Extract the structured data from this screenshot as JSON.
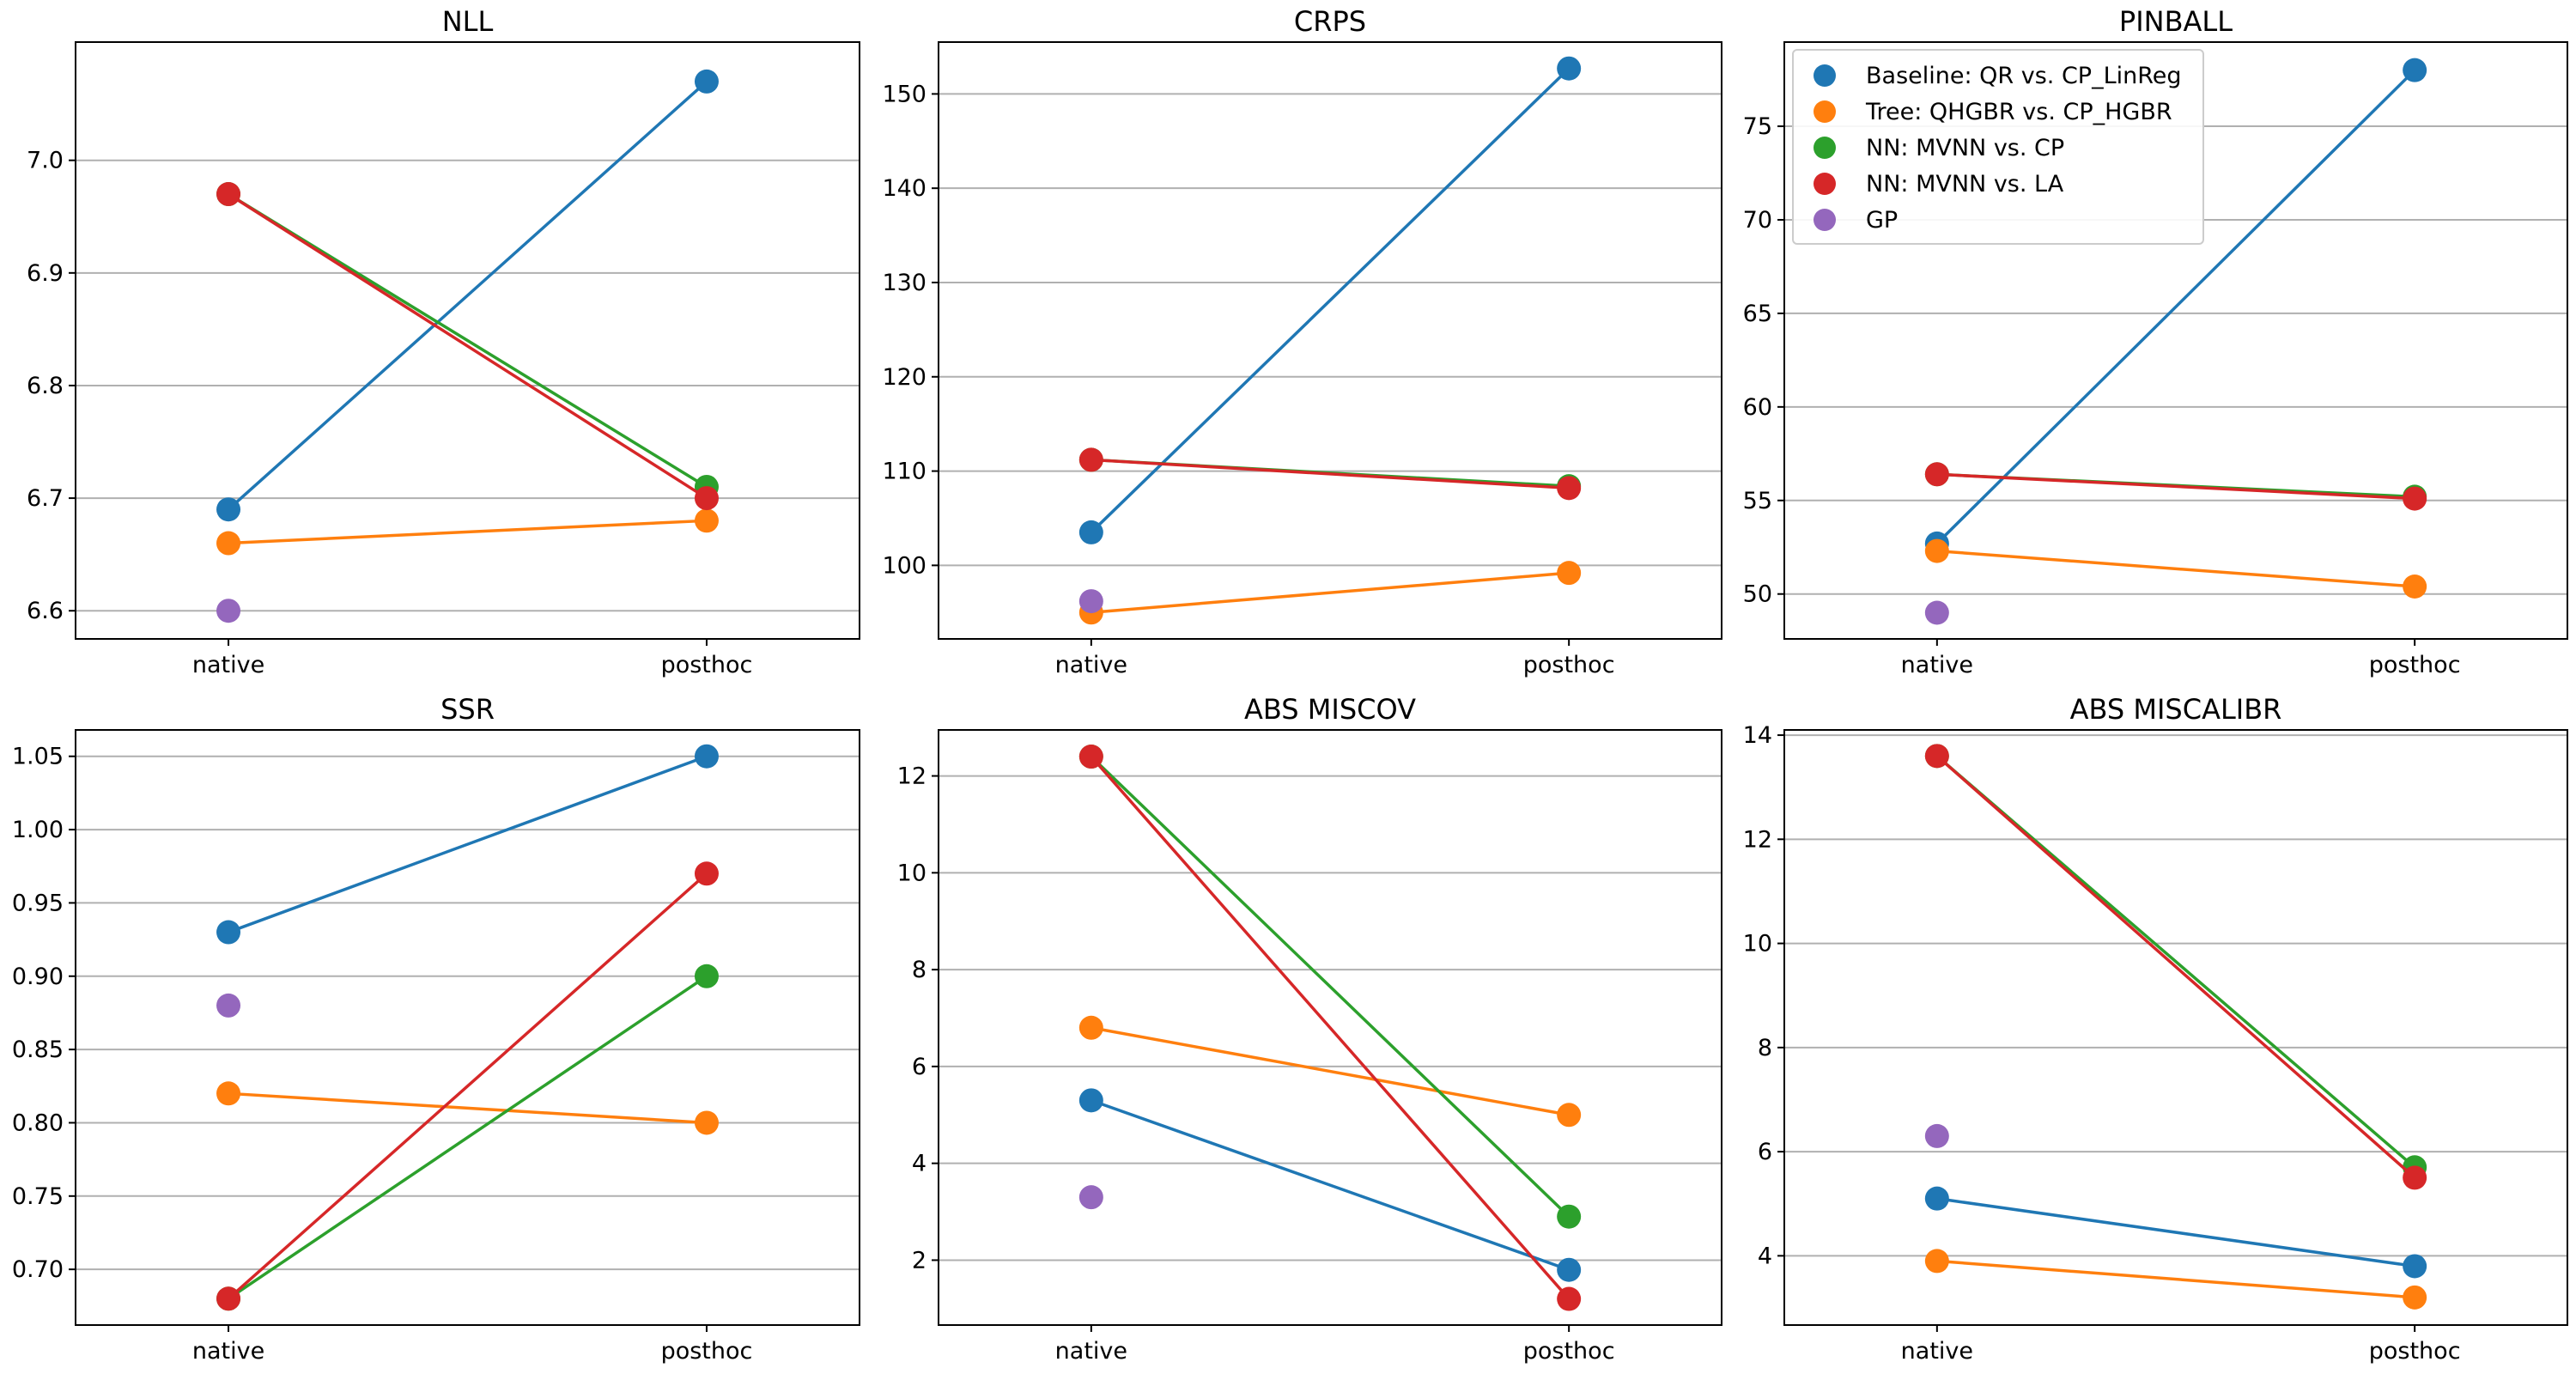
{
  "chart_data": [
    {
      "type": "line",
      "title": "NLL",
      "categories": [
        "native",
        "posthoc"
      ],
      "ylim": [
        6.575,
        7.105
      ],
      "yticks": [
        6.6,
        6.7,
        6.8,
        6.9,
        7.0
      ],
      "ytick_labels": [
        "6.6",
        "6.7",
        "6.8",
        "6.9",
        "7.0"
      ],
      "grid": "horizontal",
      "series": [
        {
          "name": "Baseline: QR vs. CP_LinReg",
          "values": [
            6.69,
            7.07
          ]
        },
        {
          "name": "Tree: QHGBR vs. CP_HGBR",
          "values": [
            6.66,
            6.68
          ]
        },
        {
          "name": "NN: MVNN vs. CP",
          "values": [
            6.97,
            6.71
          ]
        },
        {
          "name": "NN: MVNN vs. LA",
          "values": [
            6.97,
            6.7
          ]
        },
        {
          "name": "GP",
          "values": [
            6.6,
            null
          ]
        }
      ]
    },
    {
      "type": "line",
      "title": "CRPS",
      "categories": [
        "native",
        "posthoc"
      ],
      "ylim": [
        92.2,
        155.5
      ],
      "yticks": [
        100,
        110,
        120,
        130,
        140,
        150
      ],
      "ytick_labels": [
        "100",
        "110",
        "120",
        "130",
        "140",
        "150"
      ],
      "grid": "horizontal",
      "series": [
        {
          "name": "Baseline: QR vs. CP_LinReg",
          "values": [
            103.5,
            152.7
          ]
        },
        {
          "name": "Tree: QHGBR vs. CP_HGBR",
          "values": [
            95.0,
            99.2
          ]
        },
        {
          "name": "NN: MVNN vs. CP",
          "values": [
            111.2,
            108.4
          ]
        },
        {
          "name": "NN: MVNN vs. LA",
          "values": [
            111.2,
            108.2
          ]
        },
        {
          "name": "GP",
          "values": [
            96.2,
            null
          ]
        }
      ]
    },
    {
      "type": "line",
      "title": "PINBALL",
      "categories": [
        "native",
        "posthoc"
      ],
      "ylim": [
        47.6,
        79.5
      ],
      "yticks": [
        50,
        55,
        60,
        65,
        70,
        75
      ],
      "ytick_labels": [
        "50",
        "55",
        "60",
        "65",
        "70",
        "75"
      ],
      "grid": "horizontal",
      "legend": "top-left",
      "series": [
        {
          "name": "Baseline: QR vs. CP_LinReg",
          "values": [
            52.7,
            78.0
          ]
        },
        {
          "name": "Tree: QHGBR vs. CP_HGBR",
          "values": [
            52.3,
            50.4
          ]
        },
        {
          "name": "NN: MVNN vs. CP",
          "values": [
            56.4,
            55.2
          ]
        },
        {
          "name": "NN: MVNN vs. LA",
          "values": [
            56.4,
            55.1
          ]
        },
        {
          "name": "GP",
          "values": [
            49.0,
            null
          ]
        }
      ]
    },
    {
      "type": "line",
      "title": "SSR",
      "categories": [
        "native",
        "posthoc"
      ],
      "ylim": [
        0.662,
        1.068
      ],
      "yticks": [
        0.7,
        0.75,
        0.8,
        0.85,
        0.9,
        0.95,
        1.0,
        1.05
      ],
      "ytick_labels": [
        "0.70",
        "0.75",
        "0.80",
        "0.85",
        "0.90",
        "0.95",
        "1.00",
        "1.05"
      ],
      "grid": "horizontal",
      "series": [
        {
          "name": "Baseline: QR vs. CP_LinReg",
          "values": [
            0.93,
            1.05
          ]
        },
        {
          "name": "Tree: QHGBR vs. CP_HGBR",
          "values": [
            0.82,
            0.8
          ]
        },
        {
          "name": "NN: MVNN vs. CP",
          "values": [
            0.68,
            0.9
          ]
        },
        {
          "name": "NN: MVNN vs. LA",
          "values": [
            0.68,
            0.97
          ]
        },
        {
          "name": "GP",
          "values": [
            0.88,
            null
          ]
        }
      ]
    },
    {
      "type": "line",
      "title": "ABS MISCOV",
      "categories": [
        "native",
        "posthoc"
      ],
      "ylim": [
        0.66,
        12.95
      ],
      "yticks": [
        2,
        4,
        6,
        8,
        10,
        12
      ],
      "ytick_labels": [
        "2",
        "4",
        "6",
        "8",
        "10",
        "12"
      ],
      "grid": "horizontal",
      "series": [
        {
          "name": "Baseline: QR vs. CP_LinReg",
          "values": [
            5.3,
            1.8
          ]
        },
        {
          "name": "Tree: QHGBR vs. CP_HGBR",
          "values": [
            6.8,
            5.0
          ]
        },
        {
          "name": "NN: MVNN vs. CP",
          "values": [
            12.4,
            2.9
          ]
        },
        {
          "name": "NN: MVNN vs. LA",
          "values": [
            12.4,
            1.2
          ]
        },
        {
          "name": "GP",
          "values": [
            3.3,
            null
          ]
        }
      ]
    },
    {
      "type": "line",
      "title": "ABS MISCALIBR",
      "categories": [
        "native",
        "posthoc"
      ],
      "ylim": [
        2.67,
        14.1
      ],
      "yticks": [
        4,
        6,
        8,
        10,
        12,
        14
      ],
      "ytick_labels": [
        "4",
        "6",
        "8",
        "10",
        "12",
        "14"
      ],
      "grid": "horizontal",
      "series": [
        {
          "name": "Baseline: QR vs. CP_LinReg",
          "values": [
            5.1,
            3.8
          ]
        },
        {
          "name": "Tree: QHGBR vs. CP_HGBR",
          "values": [
            3.9,
            3.2
          ]
        },
        {
          "name": "NN: MVNN vs. CP",
          "values": [
            13.6,
            5.7
          ]
        },
        {
          "name": "NN: MVNN vs. LA",
          "values": [
            13.6,
            5.5
          ]
        },
        {
          "name": "GP",
          "values": [
            6.3,
            null
          ]
        }
      ]
    }
  ],
  "legend": {
    "placement": "top-left of PINBALL panel",
    "items": [
      {
        "label": "Baseline: QR vs. CP_LinReg",
        "color": "#1f77b4"
      },
      {
        "label": "Tree: QHGBR vs. CP_HGBR",
        "color": "#ff7f0e"
      },
      {
        "label": "NN: MVNN vs. CP",
        "color": "#2ca02c"
      },
      {
        "label": "NN: MVNN vs. LA",
        "color": "#d62728"
      },
      {
        "label": "GP",
        "color": "#9467bd"
      }
    ]
  },
  "colors": [
    "#1f77b4",
    "#ff7f0e",
    "#2ca02c",
    "#d62728",
    "#9467bd"
  ]
}
